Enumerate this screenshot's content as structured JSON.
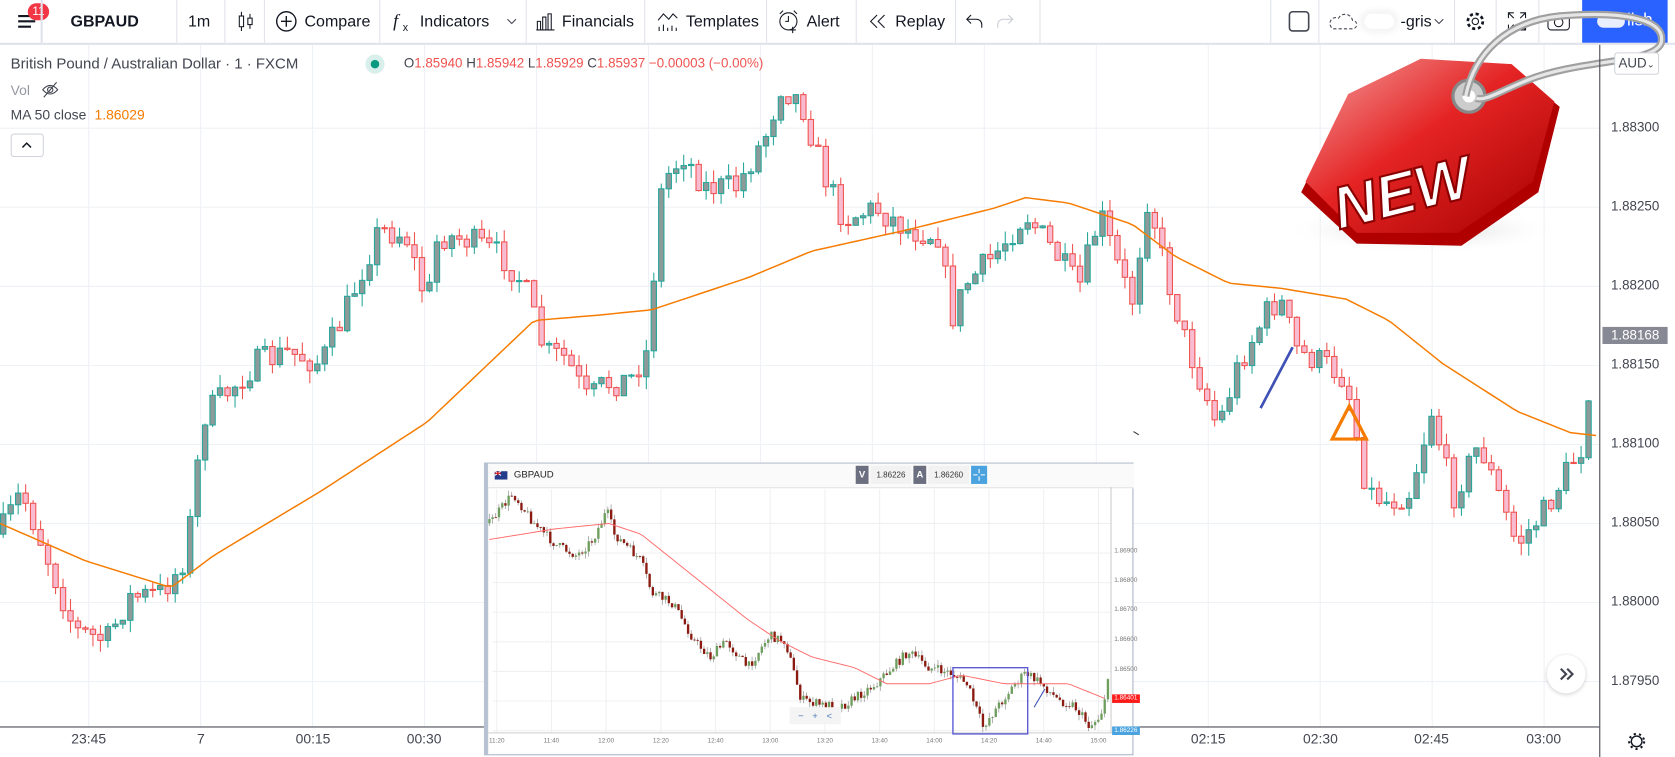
{
  "toolbar": {
    "notification_count": "11",
    "symbol": "GBPAUD",
    "interval": "1m",
    "compare": "Compare",
    "indicators": "Indicators",
    "financials": "Financials",
    "templates": "Templates",
    "alert": "Alert",
    "replay": "Replay",
    "layout_name": "-gris",
    "publish": "lish",
    "accent": "#2962ff"
  },
  "legend": {
    "title": "British Pound / Australian Dollar · 1 · FXCM",
    "o_label": "O",
    "o": "1.85940",
    "h_label": "H",
    "h": "1.85942",
    "l_label": "L",
    "l": "1.85929",
    "c_label": "C",
    "c": "1.85937",
    "change": "−0.00003 (−0.00%)",
    "vol": "Vol",
    "ma_label": "MA 50 close",
    "ma_value": "1.86029",
    "ma_color": "#f57c00"
  },
  "price_axis": {
    "currency": "AUD",
    "labels": [
      "1.88300",
      "1.88250",
      "1.88200",
      "1.88150",
      "1.88100",
      "1.88050",
      "1.88000",
      "1.87950"
    ],
    "last_price": "1.88168"
  },
  "time_axis": {
    "labels": [
      "23:45",
      "7",
      "00:15",
      "00:30",
      "02:15",
      "02:30",
      "02:45",
      "03:00"
    ]
  },
  "inset": {
    "symbol": "GBPAUD",
    "bid_label": "V",
    "bid": "1.86226",
    "ask_label": "A",
    "ask": "1.86260",
    "price_labels": [
      "1.86900",
      "1.86800",
      "1.86700",
      "1.86600",
      "1.86500"
    ],
    "current_red": "1.86401",
    "current_blue": "1.86226",
    "time_labels": [
      "11:20",
      "11:40",
      "12:00",
      "12:20",
      "12:40",
      "13:00",
      "13:20",
      "13:40",
      "14:00",
      "14:20",
      "14:40",
      "15:00"
    ],
    "zoom_controls": [
      "−",
      "+",
      "<"
    ]
  },
  "badge": {
    "text": "NEW"
  },
  "colors": {
    "up": "#26a69a",
    "down": "#ef5350",
    "drawing_blue": "#3f51b5"
  }
}
